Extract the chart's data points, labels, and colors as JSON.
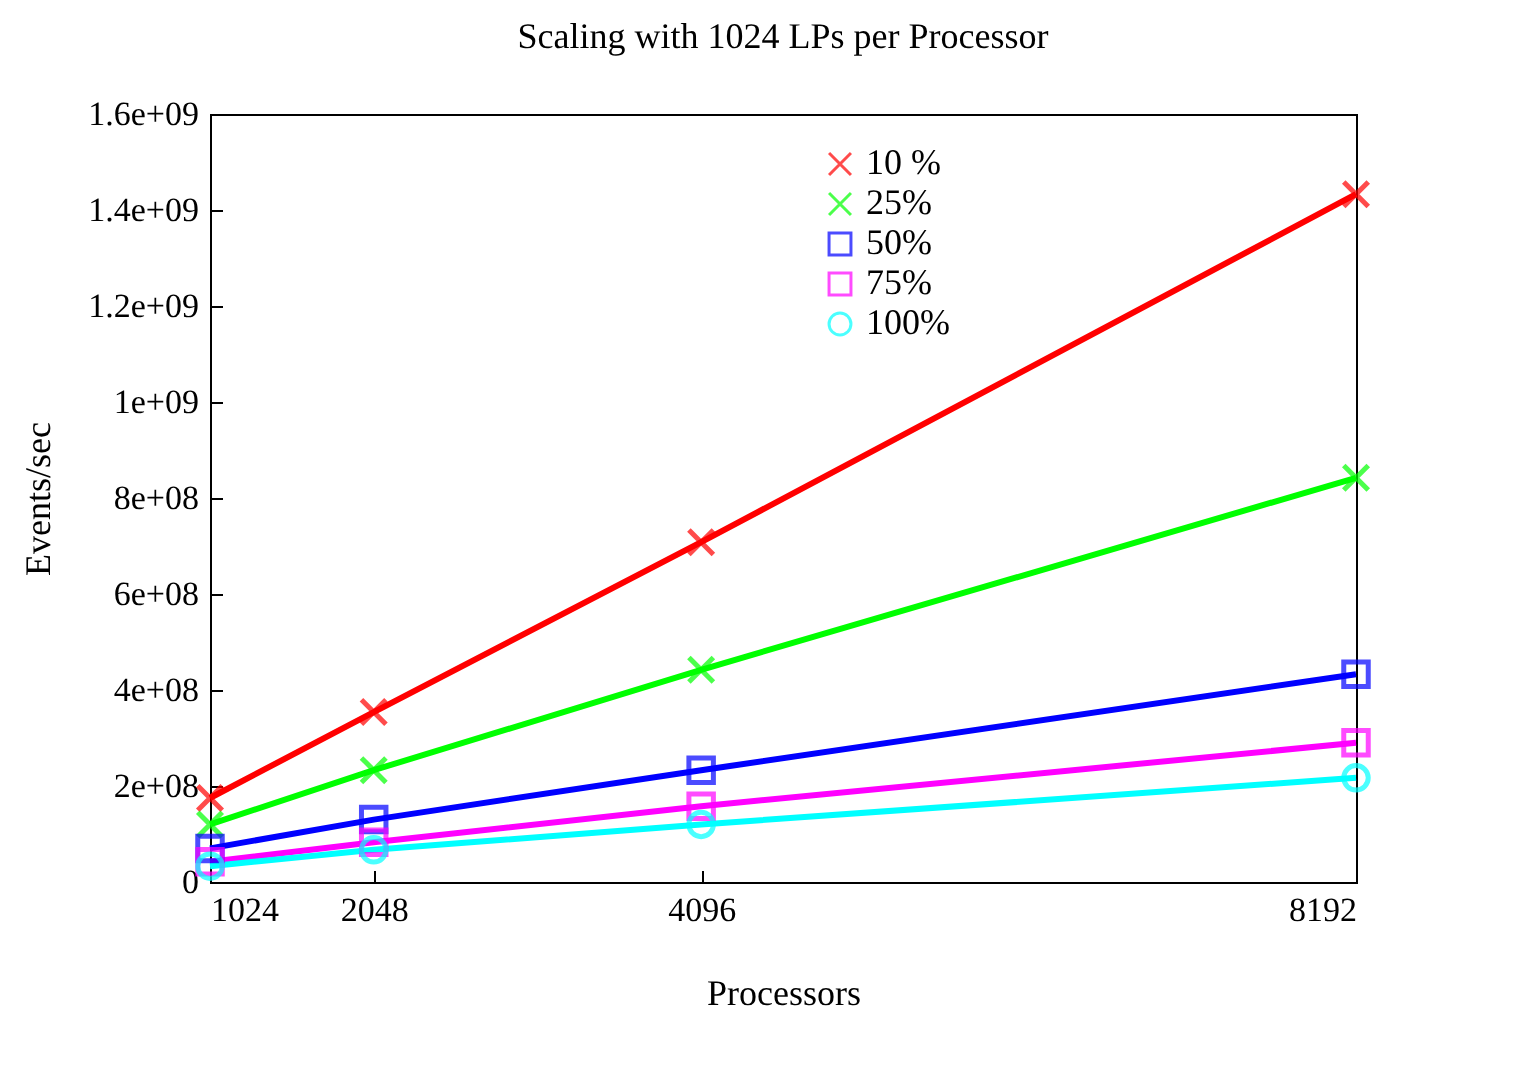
{
  "chart_data": {
    "type": "line",
    "title": "Scaling with 1024 LPs per Processor",
    "xlabel": "Processors",
    "ylabel": "Events/sec",
    "x": [
      1024,
      2048,
      4096,
      8192
    ],
    "xlim": [
      1024,
      8192
    ],
    "xticks": [
      1024,
      2048,
      4096,
      8192
    ],
    "ylim": [
      0,
      1600000000
    ],
    "yticks": [
      0,
      {
        "value": 200000000,
        "label": "2e+08"
      },
      {
        "value": 400000000,
        "label": "4e+08"
      },
      {
        "value": 600000000,
        "label": "6e+08"
      },
      {
        "value": 800000000,
        "label": "8e+08"
      },
      {
        "value": 1000000000,
        "label": "1e+09"
      },
      {
        "value": 1200000000,
        "label": "1.2e+09"
      },
      {
        "value": 1400000000,
        "label": "1.4e+09"
      },
      {
        "value": 1600000000,
        "label": "1.6e+09"
      }
    ],
    "grid": false,
    "legend": "top right",
    "series": [
      {
        "name": "10 %",
        "color": "#ff0000",
        "marker": "cross",
        "values": [
          175000000,
          354000000,
          708000000,
          1433000000
        ]
      },
      {
        "name": "25%",
        "color": "#00ff00",
        "marker": "cross",
        "values": [
          120000000,
          233000000,
          442000000,
          842000000
        ]
      },
      {
        "name": "50%",
        "color": "#0000ff",
        "marker": "square",
        "values": [
          70000000,
          130000000,
          233000000,
          433000000
        ]
      },
      {
        "name": "75%",
        "color": "#ff00ff",
        "marker": "square",
        "values": [
          42000000,
          83000000,
          158000000,
          290000000
        ]
      },
      {
        "name": "100%",
        "color": "#00ffff",
        "marker": "circle",
        "values": [
          33000000,
          67000000,
          120000000,
          217000000
        ]
      }
    ]
  }
}
